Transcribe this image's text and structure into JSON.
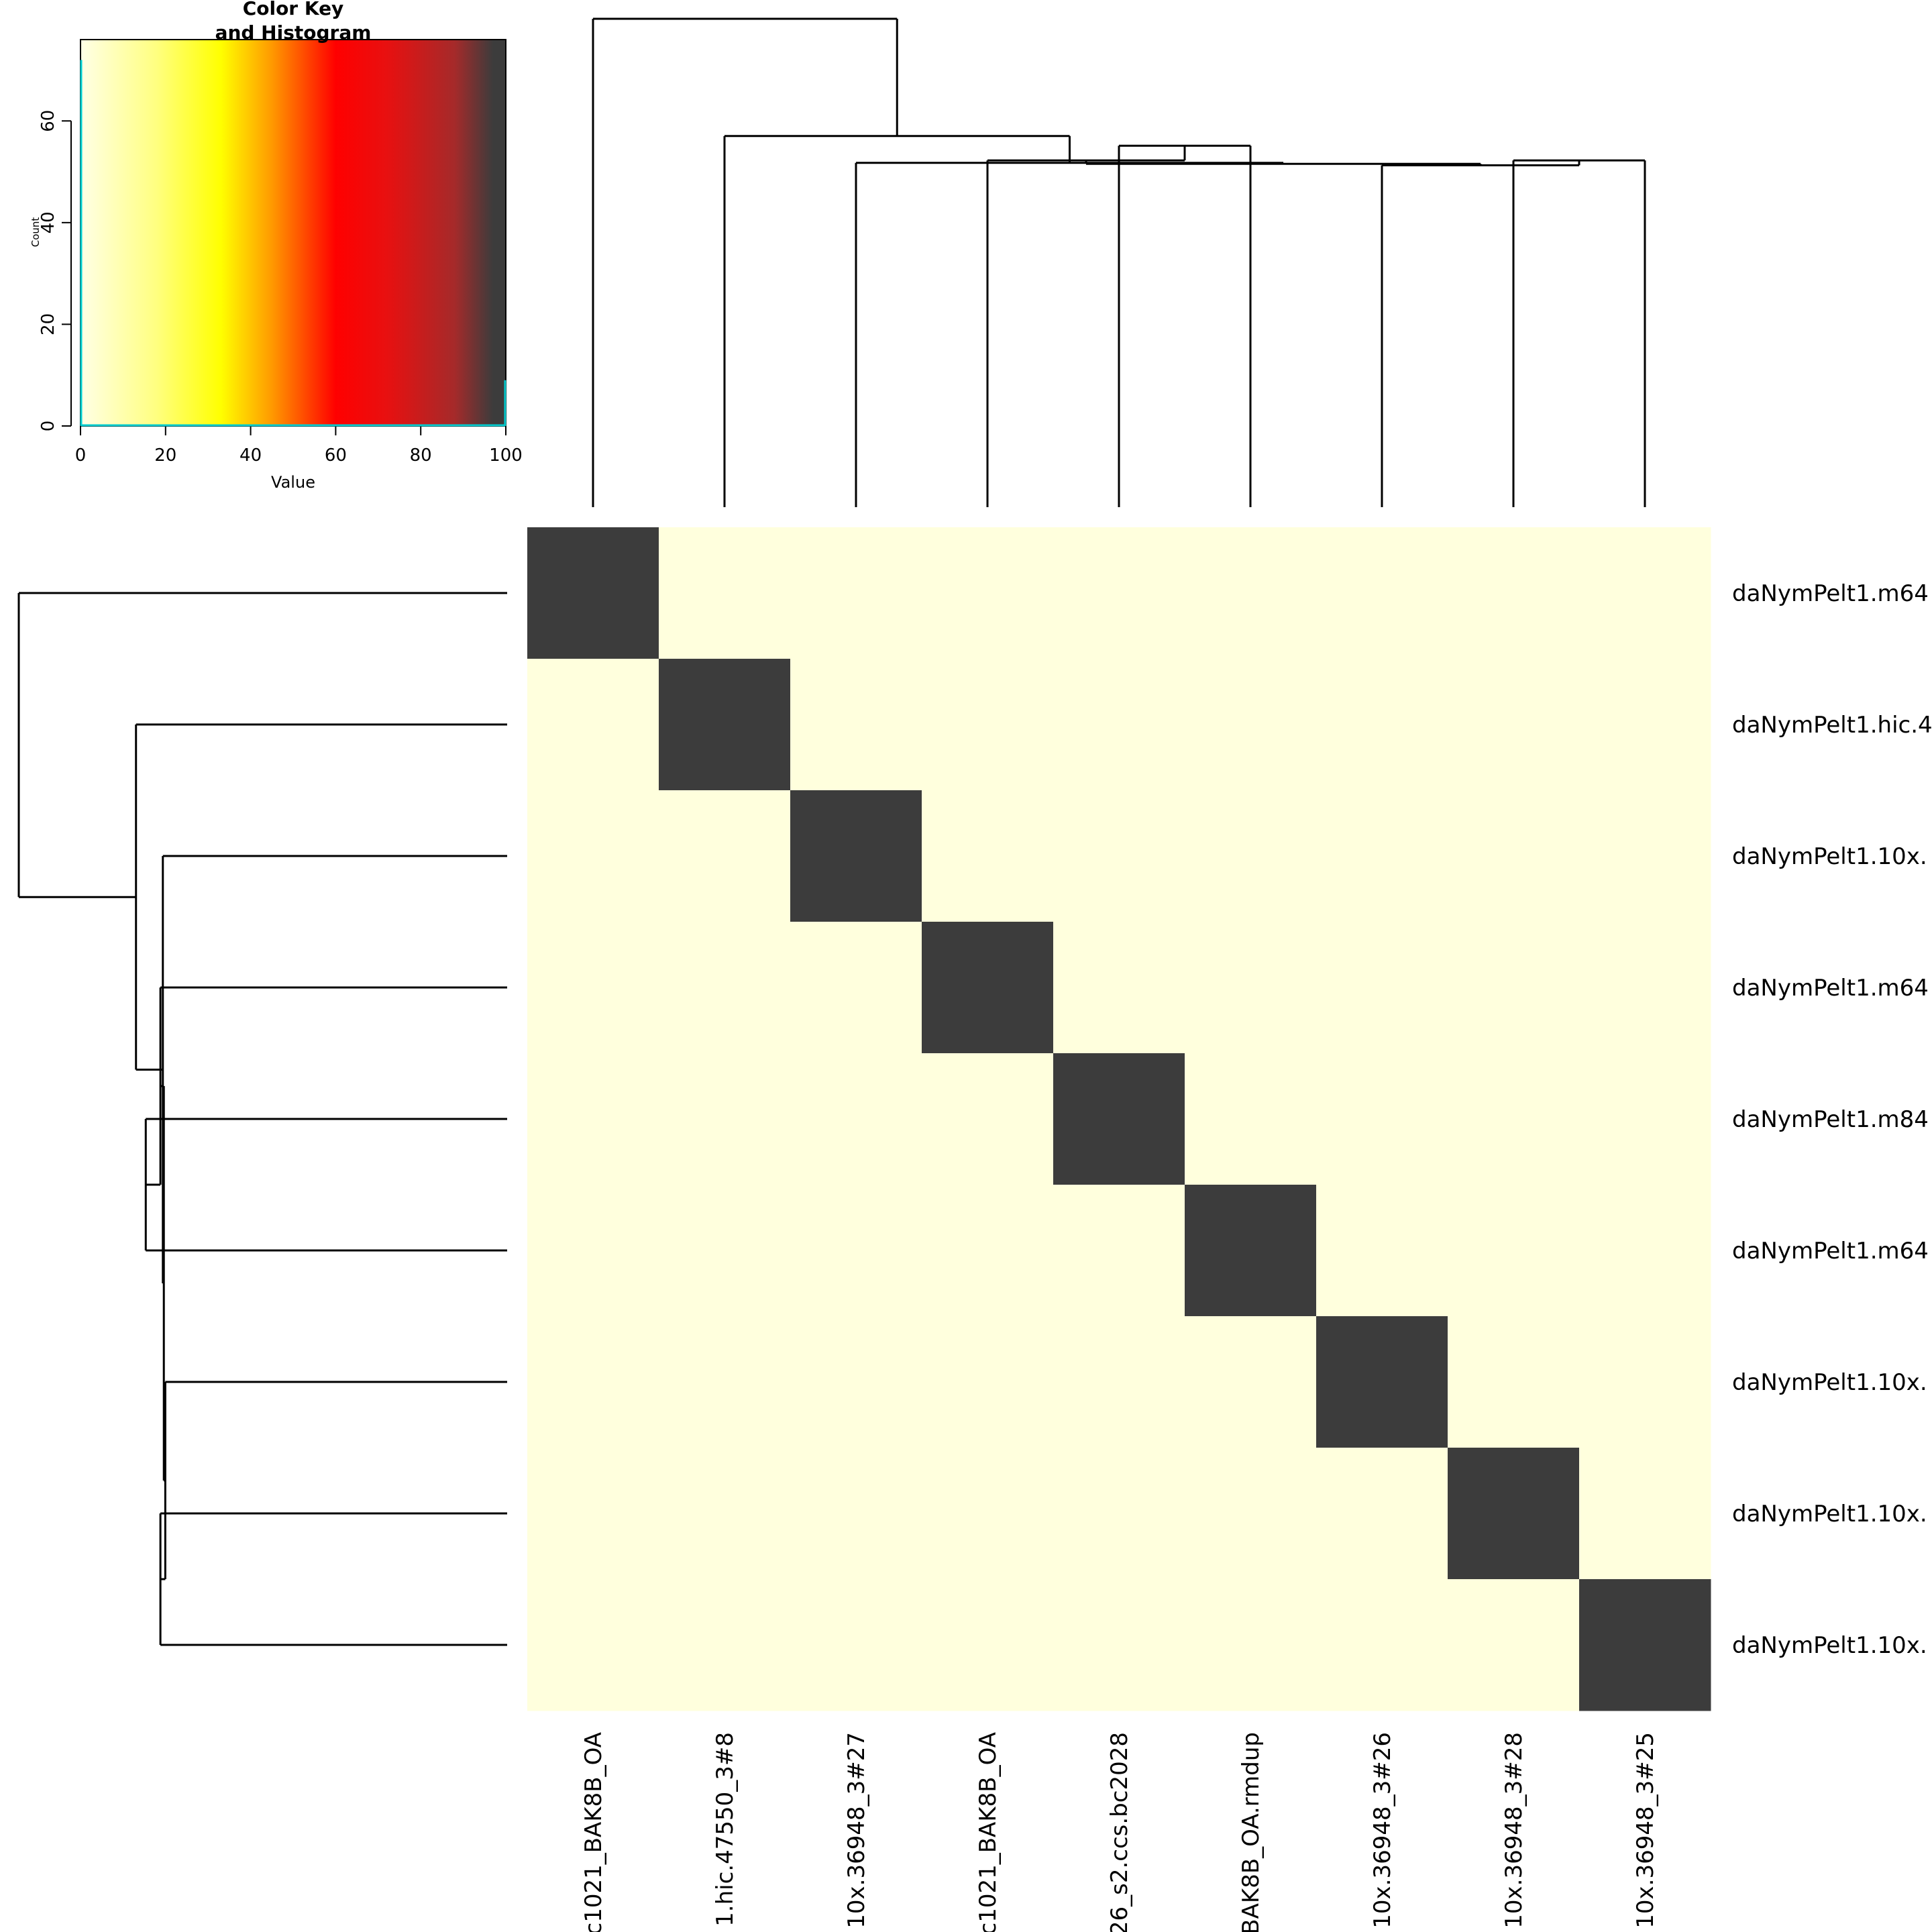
{
  "chart_data": [
    {
      "type": "heatmap",
      "row_labels": [
        "daNymPelt1.m64",
        "daNymPelt1.hic.4",
        "daNymPelt1.10x.",
        "daNymPelt1.m64",
        "daNymPelt1.m84",
        "daNymPelt1.m64",
        "daNymPelt1.10x.",
        "daNymPelt1.10x.",
        "daNymPelt1.10x."
      ],
      "col_labels": [
        "c1021_BAK8B_OA",
        "1.hic.47550_3#8",
        "10x.36948_3#27",
        "c1021_BAK8B_OA",
        "26_s2.ccs.bc2028",
        "BAK8B_OA.rmdup",
        "10x.36948_3#26",
        "10x.36948_3#28",
        "10x.36948_3#25"
      ],
      "values": [
        [
          100,
          0,
          0,
          0,
          0,
          0,
          0,
          0,
          0
        ],
        [
          0,
          100,
          0,
          0,
          0,
          0,
          0,
          0,
          0
        ],
        [
          0,
          0,
          100,
          0,
          0,
          0,
          0,
          0,
          0
        ],
        [
          0,
          0,
          0,
          100,
          0,
          0,
          0,
          0,
          0
        ],
        [
          0,
          0,
          0,
          0,
          100,
          0,
          0,
          0,
          0
        ],
        [
          0,
          0,
          0,
          0,
          0,
          100,
          0,
          0,
          0
        ],
        [
          0,
          0,
          0,
          0,
          0,
          0,
          100,
          0,
          0
        ],
        [
          0,
          0,
          0,
          0,
          0,
          0,
          0,
          100,
          0
        ],
        [
          0,
          0,
          0,
          0,
          0,
          0,
          0,
          0,
          100
        ]
      ],
      "value_range": [
        0,
        100
      ],
      "colors": {
        "low": "#FFFFDD",
        "high": "#3C3C3C",
        "scale": [
          "#FFFFE6",
          "#FFFF00",
          "#FF7F00",
          "#FF0000",
          "#B22222",
          "#3C3C3C"
        ]
      },
      "dendrogram": {
        "merges": [
          {
            "a": [
              "r",
              4
            ],
            "b": [
              "r",
              5
            ],
            "height": 0.74
          },
          {
            "a": [
              "r",
              3
            ],
            "b": [
              "n",
              0
            ],
            "height": 0.71
          },
          {
            "a": [
              "r",
              7
            ],
            "b": [
              "r",
              8
            ],
            "height": 0.71
          },
          {
            "a": [
              "r",
              6
            ],
            "b": [
              "n",
              2
            ],
            "height": 0.7
          },
          {
            "a": [
              "n",
              1
            ],
            "b": [
              "n",
              3
            ],
            "height": 0.703
          },
          {
            "a": [
              "r",
              2
            ],
            "b": [
              "n",
              4
            ],
            "height": 0.705
          },
          {
            "a": [
              "r",
              1
            ],
            "b": [
              "n",
              5
            ],
            "height": 0.76
          },
          {
            "a": [
              "r",
              0
            ],
            "b": [
              "n",
              6
            ],
            "height": 1.0
          }
        ]
      }
    },
    {
      "type": "bar",
      "title": "Color Key\nand Histogram",
      "xlabel": "Value",
      "ylabel": "Count",
      "xlim": [
        0,
        100
      ],
      "ylim": [
        0,
        76
      ],
      "xticks": [
        0,
        20,
        40,
        60,
        80,
        100
      ],
      "yticks": [
        0,
        20,
        40,
        60
      ],
      "histogram": {
        "x": [
          0,
          100
        ],
        "y": [
          72,
          9
        ],
        "line_color": "#00CED1"
      }
    }
  ]
}
